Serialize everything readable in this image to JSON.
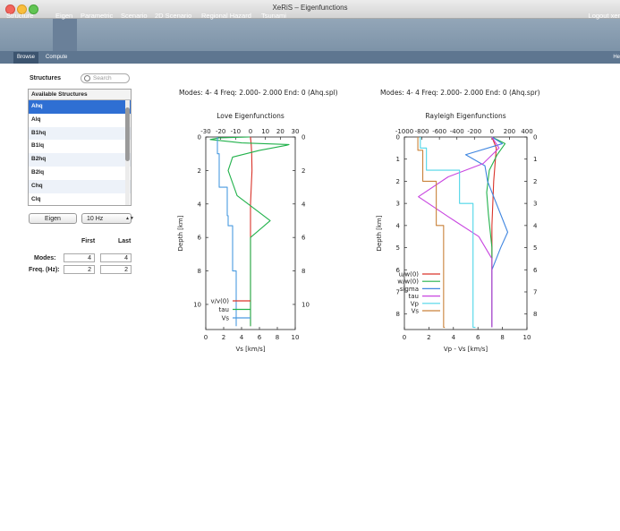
{
  "window": {
    "title": "XeRiS – Eigenfunctions"
  },
  "topnav": {
    "items": [
      "Structure",
      "Eigen",
      "Parametric",
      "Scenario",
      "2D Scenario",
      "Regional Hazard",
      "Tsunami"
    ],
    "logout": "Logout xer"
  },
  "subnav": {
    "items": [
      "Browse",
      "Compute"
    ],
    "help": "He"
  },
  "sidebar": {
    "title": "Structures",
    "search_placeholder": "Search",
    "list_header": "Available Structures",
    "items": [
      "Ahq",
      "Alq",
      "B1hq",
      "B1lq",
      "B2hq",
      "B2lq",
      "Chq",
      "Clq"
    ],
    "selected": "Ahq",
    "eigen_button": "Eigen",
    "freq_select": "10 Hz",
    "col_first": "First",
    "col_last": "Last",
    "modes_label": "Modes:",
    "freq_label": "Freq. (Hz):",
    "modes_first": "4",
    "modes_last": "4",
    "freq_first": "2",
    "freq_last": "2"
  },
  "chart_data": [
    {
      "type": "line",
      "caption": "Modes:  4-  4 Freq:  2.000-  2.000 End:  0 (Ahq.spl)",
      "title": "Love Eigenfunctions",
      "ylabel": "Depth [km]",
      "xlabel": "Vs [km/s]",
      "top_ticks": [
        "-30",
        "-20",
        "-10",
        "0",
        "10",
        "20",
        "30"
      ],
      "bottom_ticks": [
        "0",
        "2",
        "4",
        "6",
        "8",
        "10"
      ],
      "y_ticks": [
        "0",
        "2",
        "4",
        "6",
        "8",
        "10"
      ],
      "top_xlim": [
        -30,
        30
      ],
      "bottom_xlim": [
        0,
        10
      ],
      "ylim": [
        0,
        11.5
      ],
      "y_inverted": true,
      "legend": "bottom-left",
      "series": [
        {
          "name": "v/v(0)",
          "color": "#d9342b",
          "axis": "top",
          "points": [
            [
              0,
              0
            ],
            [
              0.5,
              0.5
            ],
            [
              0.8,
              1
            ],
            [
              1,
              2
            ],
            [
              0.5,
              3
            ],
            [
              0,
              4
            ],
            [
              0,
              5
            ],
            [
              0,
              6
            ],
            [
              0,
              8
            ],
            [
              0,
              11.3
            ]
          ]
        },
        {
          "name": "tau",
          "color": "#22b24c",
          "axis": "bottom",
          "points": [
            [
              4.9,
              0
            ],
            [
              1.5,
              0.05
            ],
            [
              0.5,
              0.15
            ],
            [
              4,
              0.35
            ],
            [
              9.3,
              0.45
            ],
            [
              9,
              0.5
            ],
            [
              6,
              0.8
            ],
            [
              3,
              1.2
            ],
            [
              2.5,
              2
            ],
            [
              3.5,
              3.5
            ],
            [
              7.2,
              5
            ],
            [
              5,
              6
            ],
            [
              5,
              11.3
            ]
          ]
        },
        {
          "name": "Vs",
          "color": "#4a9be0",
          "axis": "bottom",
          "step": true,
          "points": [
            [
              1.3,
              0
            ],
            [
              1.5,
              1
            ],
            [
              2.4,
              3
            ],
            [
              2.5,
              4.7
            ],
            [
              3.0,
              5.3
            ],
            [
              3.4,
              8
            ],
            [
              3.4,
              11.3
            ]
          ]
        }
      ]
    },
    {
      "type": "line",
      "caption": "Modes:  4-  4 Freq:  2.000-  2.000 End:  0 (Ahq.spr)",
      "title": "Rayleigh Eigenfunctions",
      "ylabel": "Depth [km]",
      "xlabel": "Vp - Vs [km/s]",
      "top_ticks": [
        "-1000",
        "-800",
        "-600",
        "-400",
        "-200",
        "0",
        "200",
        "400"
      ],
      "bottom_ticks": [
        "0",
        "2",
        "4",
        "6",
        "8",
        "10"
      ],
      "y_ticks": [
        "0",
        "1",
        "2",
        "3",
        "4",
        "5",
        "6",
        "7",
        "8"
      ],
      "top_xlim": [
        -1000,
        400
      ],
      "bottom_xlim": [
        0,
        10
      ],
      "ylim": [
        0,
        8.7
      ],
      "y_inverted": true,
      "legend": "bottom-left",
      "series": [
        {
          "name": "u/w(0)",
          "color": "#d9342b",
          "axis": "top",
          "points": [
            [
              0,
              0
            ],
            [
              50,
              0.5
            ],
            [
              40,
              1
            ],
            [
              20,
              2
            ],
            [
              0,
              4
            ],
            [
              0,
              8.6
            ]
          ]
        },
        {
          "name": "w/w(0)",
          "color": "#22b24c",
          "axis": "top",
          "points": [
            [
              0,
              0
            ],
            [
              150,
              0.3
            ],
            [
              60,
              0.8
            ],
            [
              -30,
              1.5
            ],
            [
              -60,
              2.5
            ],
            [
              -40,
              3.5
            ],
            [
              0,
              5
            ],
            [
              0,
              8.6
            ]
          ]
        },
        {
          "name": "sigma",
          "color": "#3f86e0",
          "axis": "top",
          "points": [
            [
              0,
              0
            ],
            [
              120,
              0.3
            ],
            [
              -300,
              0.8
            ],
            [
              -80,
              1.3
            ],
            [
              -50,
              2
            ],
            [
              100,
              3.5
            ],
            [
              180,
              4.3
            ],
            [
              100,
              5
            ],
            [
              0,
              6
            ],
            [
              0,
              8.6
            ]
          ]
        },
        {
          "name": "tau",
          "color": "#c845e0",
          "axis": "top",
          "points": [
            [
              0,
              0
            ],
            [
              80,
              0.5
            ],
            [
              -100,
              1.2
            ],
            [
              -500,
              1.8
            ],
            [
              -840,
              2.7
            ],
            [
              -500,
              3.6
            ],
            [
              -150,
              4.5
            ],
            [
              0,
              5.5
            ],
            [
              0,
              8.6
            ]
          ]
        },
        {
          "name": "Vp",
          "color": "#4fd6e8",
          "axis": "bottom",
          "step": true,
          "points": [
            [
              1.3,
              0
            ],
            [
              1.8,
              0.5
            ],
            [
              4.5,
              1.5
            ],
            [
              5.6,
              3
            ],
            [
              5.8,
              8.6
            ]
          ]
        },
        {
          "name": "Vs",
          "color": "#c9823a",
          "axis": "bottom",
          "step": true,
          "points": [
            [
              1.1,
              0
            ],
            [
              1.5,
              0.6
            ],
            [
              2.6,
              2
            ],
            [
              3.2,
              4
            ],
            [
              3.3,
              8.6
            ]
          ]
        }
      ]
    }
  ]
}
